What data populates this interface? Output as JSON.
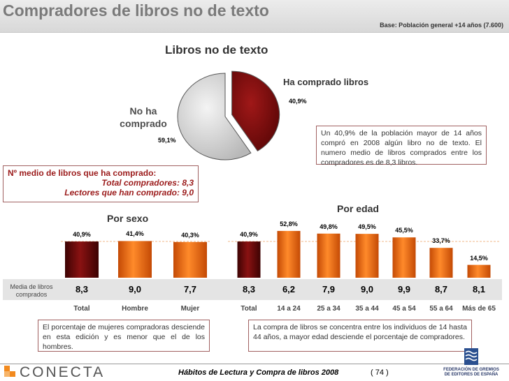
{
  "header": {
    "title": "Compradores de libros no de texto",
    "base_note": "Base: Población general +14 años (7.600)"
  },
  "pie": {
    "title": "Libros no de texto",
    "label_bought": "Ha comprado libros",
    "label_not_line1": "No ha",
    "label_not_line2": "comprado"
  },
  "callout_pie": "Un 40,9% de la población mayor de 14 años compró en 2008 algún libro no de texto. El numero medio de libros comprados entre los compradores es de  8,3 libros.",
  "avg_box": {
    "line1": "Nº medio de libros que ha comprado:",
    "line2": "Total compradores: 8,3",
    "line3": "Lectores que han comprado: 9,0"
  },
  "sex_chart": {
    "title": "Por sexo"
  },
  "age_chart": {
    "title": "Por edad"
  },
  "avg_side_label": "Media de libros comprados",
  "callout_sex": "El porcentaje de mujeres compradoras desciende en esta edición y es menor que el de los hombres.",
  "callout_age": "La compra de libros se concentra entre los individuos de 14 hasta 44 años, a mayor edad desciende el porcentaje de compradores.",
  "footer": {
    "brand": "CONECTA",
    "publication": "Hábitos de Lectura y Compra de libros 2008",
    "page": "( 74 )",
    "federation_line1": "FEDERACIÓN DE GREMIOS",
    "federation_line2": "DE EDITORES DE ESPAÑA"
  },
  "colors": {
    "dark_red": "#6e0a0a",
    "orange": "#f06a10",
    "pie_grey": "#d9d9d9",
    "pie_red": "#7a0c0c"
  },
  "chart_data": [
    {
      "type": "pie",
      "title": "Libros no de texto",
      "slices": [
        {
          "label": "Ha comprado libros",
          "value": 40.9,
          "display": "40,9%"
        },
        {
          "label": "No ha comprado",
          "value": 59.1,
          "display": "59,1%"
        }
      ]
    },
    {
      "type": "bar",
      "title": "Por sexo",
      "categories": [
        "Total",
        "Hombre",
        "Mujer"
      ],
      "values": [
        40.9,
        41.4,
        40.3
      ],
      "value_labels": [
        "40,9%",
        "41,4%",
        "40,3%"
      ],
      "averages": [
        "8,3",
        "9,0",
        "7,7"
      ],
      "ylim": [
        0,
        60
      ]
    },
    {
      "type": "bar",
      "title": "Por edad",
      "categories": [
        "Total",
        "14 a 24",
        "25 a 34",
        "35 a 44",
        "45 a 54",
        "55 a 64",
        "Más de 65"
      ],
      "values": [
        40.9,
        52.8,
        49.8,
        49.5,
        45.5,
        33.7,
        14.5
      ],
      "value_labels": [
        "40,9%",
        "52,8%",
        "49,8%",
        "49,5%",
        "45,5%",
        "33,7%",
        "14,5%"
      ],
      "averages": [
        "8,3",
        "6,2",
        "7,9",
        "9,0",
        "9,9",
        "8,7",
        "8,1"
      ],
      "ylim": [
        0,
        60
      ]
    }
  ]
}
